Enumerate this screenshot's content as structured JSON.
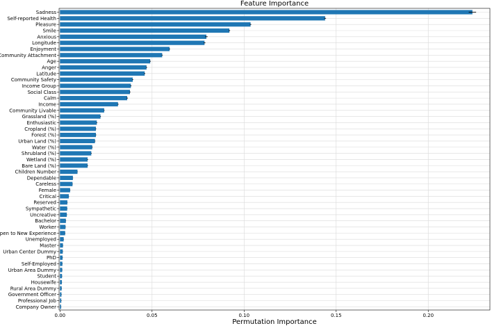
{
  "chart_data": {
    "type": "bar",
    "orientation": "horizontal",
    "title": "Feature Importance",
    "xlabel": "Permutation Importance",
    "ylabel": "",
    "xlim": [
      0.0,
      0.2335
    ],
    "xticks": [
      0.0,
      0.05,
      0.1,
      0.15,
      0.2
    ],
    "xtick_labels": [
      "0.00",
      "0.05",
      "0.10",
      "0.15",
      "0.20"
    ],
    "grid": true,
    "bar_color": "#1f77b4",
    "error_color": "#000000",
    "categories": [
      "Sadness",
      "Self-reported Health",
      "Pleasure",
      "Smile",
      "Anxious",
      "Longitude",
      "Enjoyment",
      "Community Attachment",
      "Age",
      "Anger",
      "Latitude",
      "Community Safety",
      "Income Group",
      "Social Class",
      "Calm",
      "Income",
      "Community Livable",
      "Grassland (%)",
      "Enthusiastic",
      "Cropland (%)",
      "Forest (%)",
      "Urban Land (%)",
      "Water (%)",
      "Shrubland (%)",
      "Wetland (%)",
      "Bare Land (%)",
      "Children Number",
      "Dependable",
      "Careless",
      "Female",
      "Critical",
      "Reserved",
      "Sympathetic",
      "Uncreative",
      "Bachelor",
      "Worker",
      "Open to New Experience",
      "Unemployed",
      "Master",
      "Urban Center Dummy",
      "PhD",
      "Self-Employed",
      "Urban Area Dummy",
      "Student",
      "Housewife",
      "Rural Area Dummy",
      "Government Officer",
      "Professional Job",
      "Company Owner"
    ],
    "values": [
      0.224,
      0.144,
      0.1035,
      0.092,
      0.0795,
      0.0785,
      0.0595,
      0.0555,
      0.049,
      0.047,
      0.046,
      0.0395,
      0.0385,
      0.038,
      0.0365,
      0.0315,
      0.024,
      0.022,
      0.02,
      0.0195,
      0.0195,
      0.019,
      0.0175,
      0.017,
      0.015,
      0.015,
      0.0095,
      0.007,
      0.0068,
      0.0055,
      0.0048,
      0.004,
      0.0039,
      0.0037,
      0.0032,
      0.003,
      0.0028,
      0.002,
      0.0016,
      0.0015,
      0.0014,
      0.0013,
      0.0012,
      0.0011,
      0.001,
      0.0009,
      0.0008,
      0.0007,
      0.0006
    ],
    "errors": [
      0.002,
      0.0005,
      0.0004,
      0.0004,
      0.0007,
      0.0005,
      0.0003,
      0.0003,
      0.0003,
      0.0003,
      0.0003,
      0.0003,
      0.0003,
      0.0003,
      0.0004,
      0.0003,
      0.0002,
      0.0002,
      0.0002,
      0.0002,
      0.0002,
      0.0002,
      0.0002,
      0.0002,
      0.0002,
      0.0002,
      0.0001,
      0.0001,
      0.0001,
      0.0001,
      0.0001,
      0.0001,
      0.0001,
      0.0001,
      0.0001,
      0.0001,
      0.0001,
      0.0001,
      0.0001,
      0.0001,
      0.0001,
      0.0001,
      0.0001,
      0.0001,
      0.0001,
      0.0001,
      0.0001,
      0.0001,
      0.0001
    ]
  }
}
